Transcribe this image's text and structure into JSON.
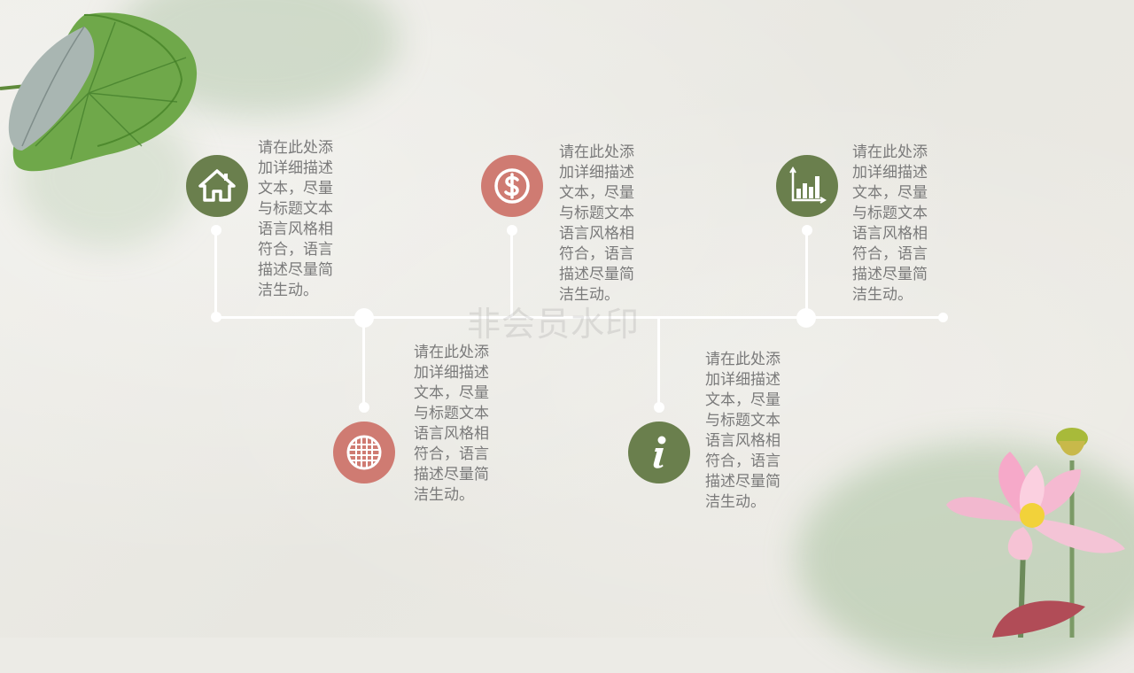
{
  "colors": {
    "green": "#6a7f4d",
    "rose": "#cf7b72",
    "line": "#ffffff",
    "text": "#7a7a7a"
  },
  "watermark": "非会员水印",
  "items": [
    {
      "icon": "house-icon",
      "color": "#6a7f4d",
      "text": "请在此处添加详细描述文本，尽量与标题文本语言风格相符合，语言描述尽量简洁生动。"
    },
    {
      "icon": "grid-icon",
      "color": "#cf7b72",
      "text": "请在此处添加详细描述文本，尽量与标题文本语言风格相符合，语言描述尽量简洁生动。"
    },
    {
      "icon": "dollar-icon",
      "color": "#cf7b72",
      "text": "请在此处添加详细描述文本，尽量与标题文本语言风格相符合，语言描述尽量简洁生动。"
    },
    {
      "icon": "info-icon",
      "color": "#6a7f4d",
      "text": "请在此处添加详细描述文本，尽量与标题文本语言风格相符合，语言描述尽量简洁生动。"
    },
    {
      "icon": "bar-chart-icon",
      "color": "#6a7f4d",
      "text": "请在此处添加详细描述文本，尽量与标题文本语言风格相符合，语言描述尽量简洁生动。"
    }
  ]
}
